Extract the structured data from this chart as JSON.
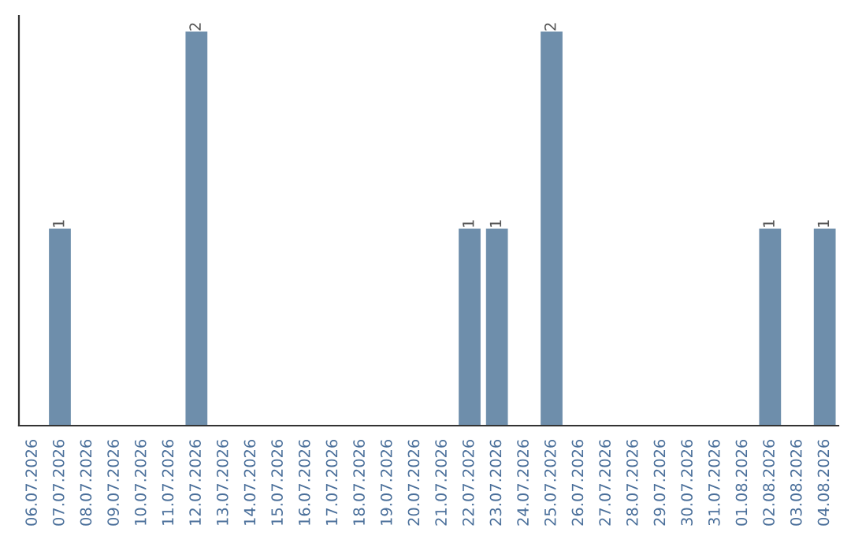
{
  "chart_data": {
    "type": "bar",
    "categories": [
      "06.07.2026",
      "07.07.2026",
      "08.07.2026",
      "09.07.2026",
      "10.07.2026",
      "11.07.2026",
      "12.07.2026",
      "13.07.2026",
      "14.07.2026",
      "15.07.2026",
      "16.07.2026",
      "17.07.2026",
      "18.07.2026",
      "19.07.2026",
      "20.07.2026",
      "21.07.2026",
      "22.07.2026",
      "23.07.2026",
      "24.07.2026",
      "25.07.2026",
      "26.07.2026",
      "27.07.2026",
      "28.07.2026",
      "29.07.2026",
      "30.07.2026",
      "31.07.2026",
      "01.08.2026",
      "02.08.2026",
      "03.08.2026",
      "04.08.2026"
    ],
    "values": [
      0,
      1,
      0,
      0,
      0,
      0,
      2,
      0,
      0,
      0,
      0,
      0,
      0,
      0,
      0,
      0,
      1,
      1,
      0,
      2,
      0,
      0,
      0,
      0,
      0,
      0,
      0,
      1,
      0,
      1
    ],
    "value_labels": [
      null,
      "1",
      null,
      null,
      null,
      null,
      "2",
      null,
      null,
      null,
      null,
      null,
      null,
      null,
      null,
      null,
      "1",
      "1",
      null,
      "2",
      null,
      null,
      null,
      null,
      null,
      null,
      null,
      "1",
      null,
      "1"
    ],
    "color": "#6e8eab",
    "tick_labels": "x",
    "grid": false,
    "legend": false
  }
}
